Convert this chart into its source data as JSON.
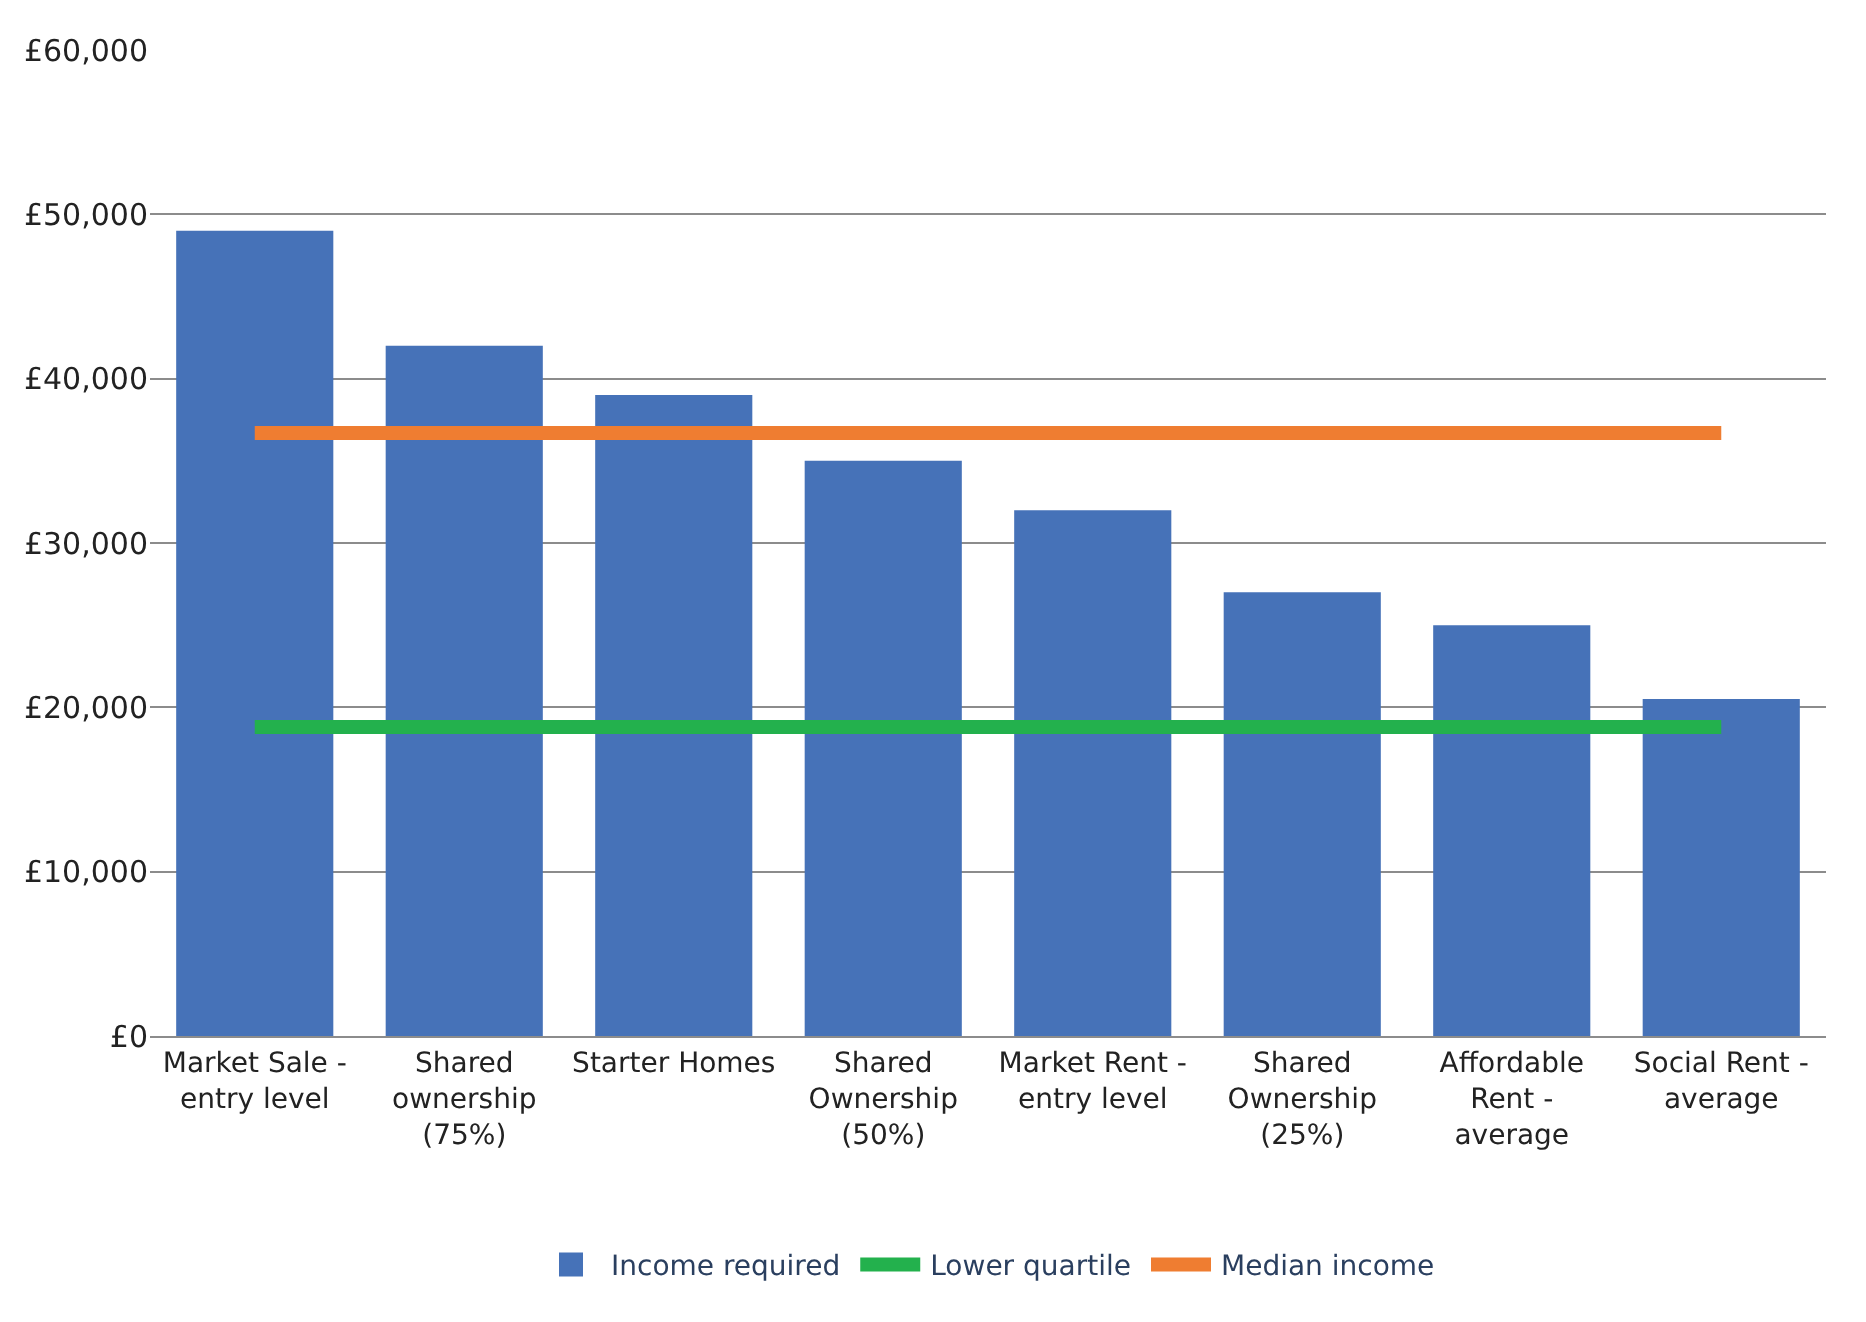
{
  "chart_data": {
    "type": "bar",
    "categories": [
      "Market Sale - entry level",
      "Shared ownership (75%)",
      "Starter Homes",
      "Shared Ownership (50%)",
      "Market Rent - entry level",
      "Shared Ownership (25%)",
      "Affordable Rent - average",
      "Social Rent - average"
    ],
    "series": [
      {
        "name": "Income required",
        "color": "#4672b8",
        "values": [
          49000,
          42000,
          39000,
          35000,
          32000,
          27000,
          25000,
          20500
        ]
      },
      {
        "name": "Lower quartile",
        "type": "line",
        "color": "#23b14d",
        "values": [
          18800,
          18800,
          18800,
          18800,
          18800,
          18800,
          18800,
          18800
        ]
      },
      {
        "name": "Median income",
        "type": "line",
        "color": "#ef7d31",
        "values": [
          36700,
          36700,
          36700,
          36700,
          36700,
          36700,
          36700,
          36700
        ]
      }
    ],
    "ylim": [
      0,
      60000
    ],
    "yticks": [
      {
        "value": 0,
        "label": "£0"
      },
      {
        "value": 10000,
        "label": "£10,000"
      },
      {
        "value": 20000,
        "label": "£20,000"
      },
      {
        "value": 30000,
        "label": "£30,000"
      },
      {
        "value": 40000,
        "label": "£40,000"
      },
      {
        "value": 50000,
        "label": "£50,000"
      },
      {
        "value": 60000,
        "label": "£60,000"
      }
    ],
    "grid": "y",
    "legend": "bottom",
    "marker": "none"
  }
}
